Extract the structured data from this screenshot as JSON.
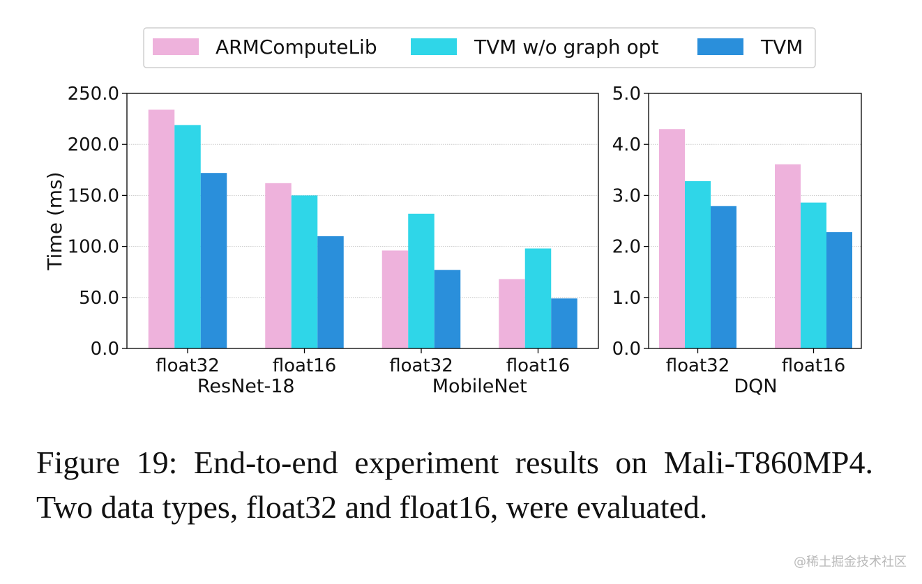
{
  "legend": [
    {
      "label": "ARMComputeLib",
      "color": "#eeb2dc"
    },
    {
      "label": "TVM w/o graph opt",
      "color": "#2fd6e8"
    },
    {
      "label": "TVM",
      "color": "#2a8fdb"
    }
  ],
  "chart_data": [
    {
      "type": "bar",
      "ylabel": "Time (ms)",
      "ylim": [
        0,
        250
      ],
      "yticks": [
        "0.0",
        "50.0",
        "100.0",
        "150.0",
        "200.0",
        "250.0"
      ],
      "grid": true,
      "categories": [
        "float32",
        "float16",
        "float32",
        "float16"
      ],
      "groups": [
        {
          "label": "ResNet-18",
          "categories": [
            0,
            1
          ]
        },
        {
          "label": "MobileNet",
          "categories": [
            2,
            3
          ]
        }
      ],
      "series": [
        {
          "name": "ARMComputeLib",
          "values": [
            234,
            162,
            96,
            68
          ]
        },
        {
          "name": "TVM w/o graph opt",
          "values": [
            219,
            150,
            132,
            98
          ]
        },
        {
          "name": "TVM",
          "values": [
            172,
            110,
            77,
            49
          ]
        }
      ]
    },
    {
      "type": "bar",
      "ylim": [
        0,
        5
      ],
      "yticks": [
        "0.0",
        "1.0",
        "2.0",
        "3.0",
        "4.0",
        "5.0"
      ],
      "grid": true,
      "categories": [
        "float32",
        "float16"
      ],
      "groups": [
        {
          "label": "DQN",
          "categories": [
            0,
            1
          ]
        }
      ],
      "series": [
        {
          "name": "ARMComputeLib",
          "values": [
            4.3,
            3.61
          ]
        },
        {
          "name": "TVM w/o graph opt",
          "values": [
            3.28,
            2.86
          ]
        },
        {
          "name": "TVM",
          "values": [
            2.79,
            2.28
          ]
        }
      ]
    }
  ],
  "caption": "Figure 19:  End-to-end experiment results on Mali-T860MP4.  Two data types, float32 and float16, were evaluated.",
  "watermark": "@稀土掘金技术社区"
}
